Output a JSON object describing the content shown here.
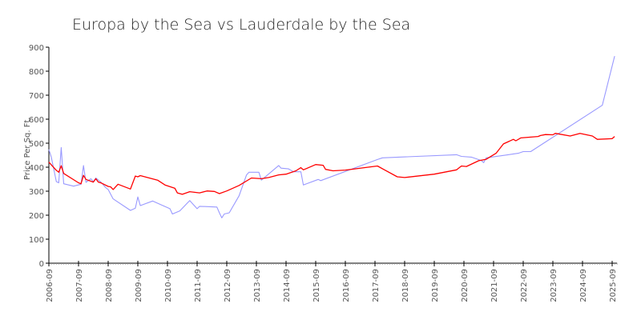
{
  "chart_data": {
    "type": "line",
    "title": "Europa by the Sea vs Lauderdale by the Sea",
    "xlabel": "",
    "ylabel": "Price Per Sq. Ft.",
    "ylim": [
      0,
      900
    ],
    "xlim": [
      "2006-09",
      "2025-11"
    ],
    "yticks": [
      "0",
      "100",
      "200",
      "300",
      "400",
      "500",
      "600",
      "700",
      "800",
      "900"
    ],
    "xticks": [
      "2006-09",
      "2007-09",
      "2008-09",
      "2009-09",
      "2010-09",
      "2011-09",
      "2012-09",
      "2013-09",
      "2014-09",
      "2015-09",
      "2016-09",
      "2017-09",
      "2018-09",
      "2019-09",
      "2020-09",
      "2021-09",
      "2022-09",
      "2023-09",
      "2024-09",
      "2025-09"
    ],
    "grid": false,
    "legend": "none",
    "series": [
      {
        "color": "#9999ff",
        "points": [
          [
            "2006-09",
            474
          ],
          [
            "2006-10",
            441
          ],
          [
            "2006-12",
            340
          ],
          [
            "2007-01",
            335
          ],
          [
            "2007-02",
            482
          ],
          [
            "2007-03",
            331
          ],
          [
            "2007-07",
            321
          ],
          [
            "2007-10",
            329
          ],
          [
            "2007-11",
            407
          ],
          [
            "2007-12",
            337
          ],
          [
            "2008-02",
            352
          ],
          [
            "2008-03",
            340
          ],
          [
            "2008-04",
            355
          ],
          [
            "2008-06",
            338
          ],
          [
            "2008-08",
            315
          ],
          [
            "2008-09",
            307
          ],
          [
            "2008-11",
            268
          ],
          [
            "2009-06",
            220
          ],
          [
            "2009-08",
            229
          ],
          [
            "2009-09",
            276
          ],
          [
            "2009-10",
            240
          ],
          [
            "2010-03",
            259
          ],
          [
            "2010-10",
            227
          ],
          [
            "2010-11",
            205
          ],
          [
            "2011-02",
            218
          ],
          [
            "2011-06",
            261
          ],
          [
            "2011-09",
            227
          ],
          [
            "2011-10",
            237
          ],
          [
            "2012-05",
            234
          ],
          [
            "2012-06",
            210
          ],
          [
            "2012-07",
            189
          ],
          [
            "2012-08",
            205
          ],
          [
            "2012-10",
            210
          ],
          [
            "2013-02",
            281
          ],
          [
            "2013-05",
            368
          ],
          [
            "2013-06",
            379
          ],
          [
            "2013-10",
            379
          ],
          [
            "2013-11",
            346
          ],
          [
            "2014-06",
            407
          ],
          [
            "2014-07",
            396
          ],
          [
            "2014-10",
            393
          ],
          [
            "2014-12",
            381
          ],
          [
            "2015-03",
            381
          ],
          [
            "2015-04",
            326
          ],
          [
            "2015-10",
            349
          ],
          [
            "2015-11",
            344
          ],
          [
            "2017-10",
            432
          ],
          [
            "2017-12",
            439
          ],
          [
            "2020-06",
            452
          ],
          [
            "2020-08",
            445
          ],
          [
            "2020-12",
            442
          ],
          [
            "2021-04",
            428
          ],
          [
            "2021-05",
            419
          ],
          [
            "2021-06",
            439
          ],
          [
            "2022-07",
            458
          ],
          [
            "2022-09",
            465
          ],
          [
            "2022-12",
            465
          ],
          [
            "2025-05",
            658
          ],
          [
            "2025-10",
            863
          ]
        ]
      },
      {
        "color": "#ff0000",
        "points": [
          [
            "2006-09",
            421
          ],
          [
            "2006-12",
            387
          ],
          [
            "2007-01",
            379
          ],
          [
            "2007-02",
            406
          ],
          [
            "2007-03",
            374
          ],
          [
            "2007-09",
            335
          ],
          [
            "2007-10",
            331
          ],
          [
            "2007-11",
            366
          ],
          [
            "2007-12",
            349
          ],
          [
            "2008-03",
            338
          ],
          [
            "2008-04",
            352
          ],
          [
            "2008-05",
            338
          ],
          [
            "2008-06",
            335
          ],
          [
            "2008-09",
            320
          ],
          [
            "2008-10",
            318
          ],
          [
            "2008-11",
            307
          ],
          [
            "2009-01",
            329
          ],
          [
            "2009-06",
            309
          ],
          [
            "2009-08",
            363
          ],
          [
            "2009-09",
            360
          ],
          [
            "2009-10",
            365
          ],
          [
            "2010-05",
            346
          ],
          [
            "2010-08",
            326
          ],
          [
            "2010-12",
            312
          ],
          [
            "2011-01",
            293
          ],
          [
            "2011-03",
            287
          ],
          [
            "2011-06",
            298
          ],
          [
            "2011-10",
            293
          ],
          [
            "2012-01",
            301
          ],
          [
            "2012-04",
            299
          ],
          [
            "2012-06",
            290
          ],
          [
            "2012-09",
            301
          ],
          [
            "2013-02",
            324
          ],
          [
            "2013-07",
            355
          ],
          [
            "2013-11",
            352
          ],
          [
            "2014-02",
            357
          ],
          [
            "2014-06",
            368
          ],
          [
            "2014-09",
            371
          ],
          [
            "2015-01",
            385
          ],
          [
            "2015-03",
            398
          ],
          [
            "2015-04",
            389
          ],
          [
            "2015-09",
            411
          ],
          [
            "2015-12",
            408
          ],
          [
            "2016-01",
            391
          ],
          [
            "2016-04",
            385
          ],
          [
            "2016-09",
            388
          ],
          [
            "2017-10",
            405
          ],
          [
            "2018-01",
            388
          ],
          [
            "2018-06",
            360
          ],
          [
            "2018-09",
            357
          ],
          [
            "2019-09",
            371
          ],
          [
            "2020-06",
            389
          ],
          [
            "2020-08",
            405
          ],
          [
            "2020-10",
            403
          ],
          [
            "2021-03",
            427
          ],
          [
            "2021-06",
            433
          ],
          [
            "2021-10",
            458
          ],
          [
            "2022-01",
            497
          ],
          [
            "2022-05",
            516
          ],
          [
            "2022-06",
            510
          ],
          [
            "2022-08",
            522
          ],
          [
            "2023-03",
            528
          ],
          [
            "2023-04",
            532
          ],
          [
            "2023-06",
            536
          ],
          [
            "2023-09",
            535
          ],
          [
            "2023-10",
            541
          ],
          [
            "2024-04",
            530
          ],
          [
            "2024-08",
            541
          ],
          [
            "2025-01",
            530
          ],
          [
            "2025-03",
            516
          ],
          [
            "2025-09",
            519
          ],
          [
            "2025-10",
            528
          ]
        ]
      }
    ]
  }
}
